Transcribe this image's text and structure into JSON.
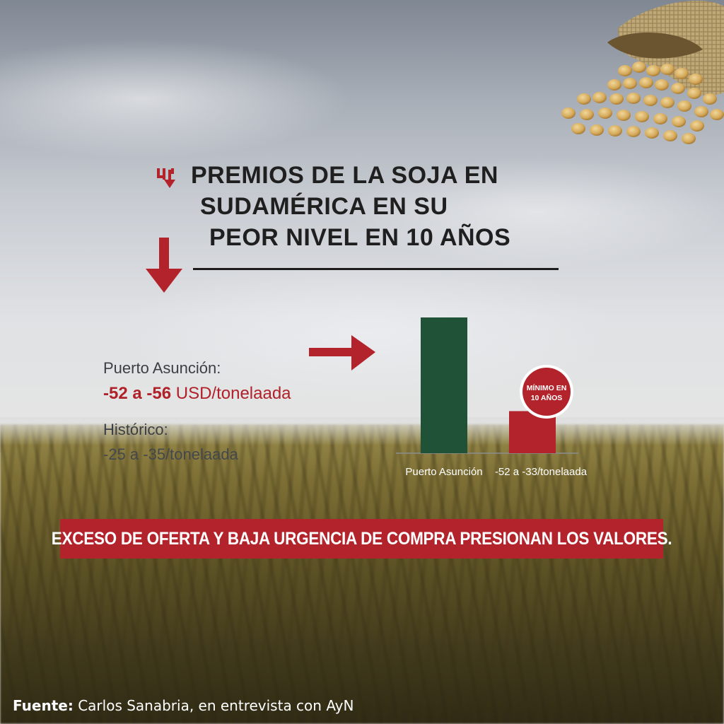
{
  "headline": {
    "line1": "PREMIOS DE LA SOJA EN",
    "line2": "SUDAMÉRICA EN SU",
    "line3": "PEOR NIVEL EN 10 AÑOS"
  },
  "stats": {
    "puerto_label": "Puerto Asunción:",
    "puerto_value_numbers": "-52 a -56",
    "puerto_value_unit": "USD/tonelaada",
    "historico_label": "Histórico:",
    "historico_value": "-25 a -35/tonelaada"
  },
  "chart_data": {
    "type": "bar",
    "categories": [
      "Puerto Asunción",
      "-52 a -33/tonelaada"
    ],
    "values": [
      1.0,
      0.31
    ],
    "value_units": "relative bar height (axis not printed)",
    "colors": [
      "#1f5236",
      "#b3232b"
    ],
    "badge": {
      "text_line1": "MÍNIMO EN",
      "text_line2": "10 AÑOS",
      "color": "#b3232b",
      "attached_to": "-52 a -33/tonelaada"
    },
    "title": "",
    "xlabel": "",
    "ylabel": "",
    "grid": false
  },
  "banner": {
    "text": "EXCESO DE OFERTA Y BAJA URGENCIA DE COMPRA PRESIONAN LOS VALORES.",
    "color": "#b3232b"
  },
  "source": {
    "label": "Fuente:",
    "text": " Carlos Sanabria, en entrevista con AyN"
  },
  "icons": {
    "small_arrow": "trend-down-icon",
    "big_arrow": "arrow-down-icon",
    "right_arrow": "arrow-right-icon",
    "sack": "soybean-sack-icon"
  },
  "accent_color": "#b3232b"
}
